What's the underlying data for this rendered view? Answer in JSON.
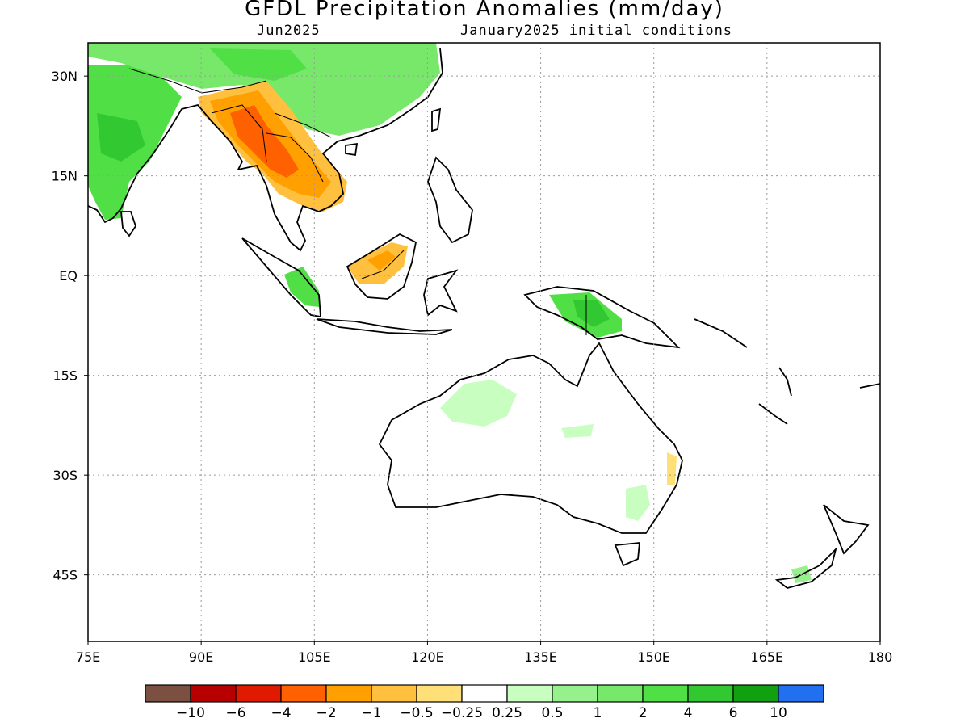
{
  "title": "GFDL Precipitation Anomalies (mm/day)",
  "subtitle_left": "Jun2025",
  "subtitle_right": "January2025 initial conditions",
  "lon_labels": [
    "75E",
    "90E",
    "105E",
    "120E",
    "135E",
    "150E",
    "165E",
    "180"
  ],
  "lat_labels": [
    "30N",
    "15N",
    "EQ",
    "15S",
    "30S",
    "45S"
  ],
  "lon_values": [
    75,
    90,
    105,
    120,
    135,
    150,
    165,
    180
  ],
  "lat_values": [
    30,
    15,
    0,
    -15,
    -30,
    -45
  ],
  "lon_range": [
    75,
    180
  ],
  "lat_range": [
    -55,
    35
  ],
  "grid": true,
  "colorbar": {
    "colors": [
      "#7b5040",
      "#b80000",
      "#e01a00",
      "#ff6000",
      "#ffa000",
      "#ffc040",
      "#ffe078",
      "#ffffff",
      "#c8ffc0",
      "#96f08c",
      "#78e86a",
      "#50e046",
      "#32c832",
      "#10a010",
      "#2070f0"
    ],
    "labels": [
      "−10",
      "−6",
      "−4",
      "−2",
      "−1",
      "−0.5",
      "−0.25",
      "0.25",
      "0.5",
      "1",
      "2",
      "4",
      "6",
      "10"
    ]
  }
}
